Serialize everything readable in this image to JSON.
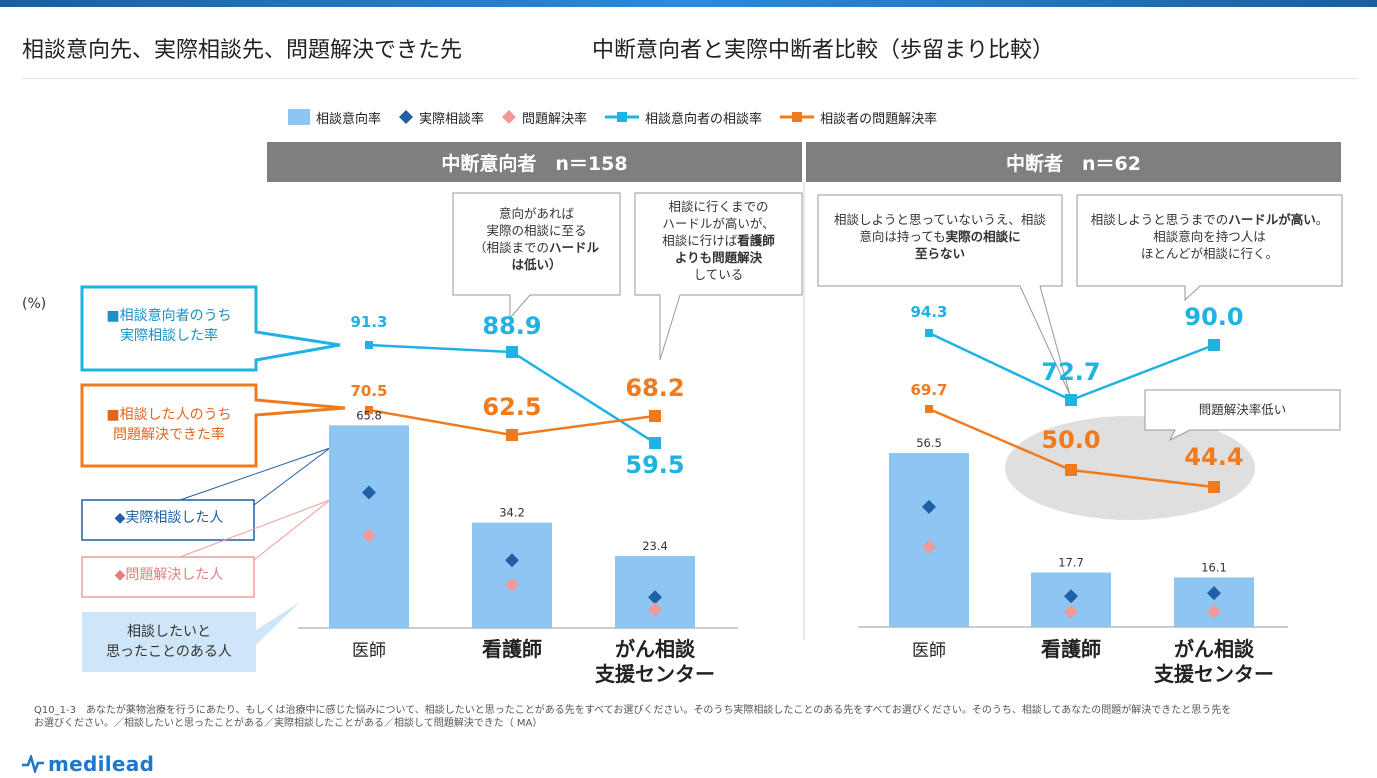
{
  "header": {
    "title_left": "相談意向先、実際相談先、問題解決できた先",
    "title_right": "中断意向者と実際中断者比較（歩留まり比較）"
  },
  "unit_label": "(%)",
  "legend": {
    "bar": "相談意向率",
    "diamond_dark": "実際相談率",
    "diamond_pink": "問題解決率",
    "line_blue": "相談意向者の相談率",
    "line_orange": "相談者の問題解決率"
  },
  "colors": {
    "bar": "#8ec6f2",
    "diamond_dark": "#1f5fa6",
    "diamond_pink": "#f29a9a",
    "line_blue": "#1fb2e3",
    "line_orange": "#f07a1e",
    "panel_header": "#7f7f7f"
  },
  "side_labels": {
    "blue_box": [
      "■相談意向者のうち",
      "実際相談した率"
    ],
    "orange_box": [
      "■相談した人のうち",
      "問題解決できた率"
    ],
    "dark_box": "◆実際相談した人",
    "pink_box": "◆問題解決した人",
    "light_box": [
      "相談したいと",
      "思ったことのある人"
    ]
  },
  "callouts": {
    "hurdle_low": {
      "lines": [
        "意向があれば",
        "実際の相談に至る",
        "（相談までの",
        "は低い）"
      ],
      "bold": "ハードル"
    },
    "hurdle_high": {
      "lines": [
        "相談に行くまでの",
        "ハードルが高いが、",
        "相談に行けば",
        "よりも問題解決",
        "している"
      ],
      "bold": "看護師"
    },
    "no_consult": {
      "lines": [
        "相談しようと思っていないうえ、相談",
        "意向は持っても",
        "至らない"
      ],
      "bold": "実際の相談に"
    },
    "high_hurdle2": {
      "line1_plain": "相談しようと思うまでの",
      "line1_bold": "ハードルが高い",
      "line1_end": "。",
      "line2": "相談意向を持つ人は",
      "line3": "ほとんどが相談に行く。"
    },
    "low_solve": "問題解決率低い"
  },
  "categories": [
    "医師",
    "看護師",
    "がん相談\n支援センター"
  ],
  "chart_data": [
    {
      "type": "bar",
      "panel_title": "中断意向者　n＝158",
      "categories": [
        "医師",
        "看護師",
        "がん相談\n支援センター"
      ],
      "ylabel": "(%)",
      "series": [
        {
          "name": "相談意向率",
          "values": [
            65.8,
            34.2,
            23.4
          ]
        },
        {
          "name": "実際相談率",
          "values": [
            44.0,
            22.0,
            10.0
          ]
        },
        {
          "name": "問題解決率",
          "values": [
            30.0,
            14.0,
            6.0
          ]
        },
        {
          "name": "相談意向者の相談率",
          "values": [
            91.3,
            88.9,
            59.5
          ]
        },
        {
          "name": "相談者の問題解決率",
          "values": [
            70.5,
            62.5,
            68.2
          ]
        }
      ]
    },
    {
      "type": "bar",
      "panel_title": "中断者　n＝62",
      "categories": [
        "医師",
        "看護師",
        "がん相談\n支援センター"
      ],
      "ylabel": "(%)",
      "series": [
        {
          "name": "相談意向率",
          "values": [
            56.5,
            17.7,
            16.1
          ]
        },
        {
          "name": "実際相談率",
          "values": [
            39.0,
            10.0,
            11.0
          ]
        },
        {
          "name": "問題解決率",
          "values": [
            26.0,
            5.0,
            5.0
          ]
        },
        {
          "name": "相談意向者の相談率",
          "values": [
            94.3,
            72.7,
            90.0
          ]
        },
        {
          "name": "相談者の問題解決率",
          "values": [
            69.7,
            50.0,
            44.4
          ]
        }
      ]
    }
  ],
  "footnote": [
    "Q10_1-3　あなたが薬物治療を行うにあたり、もしくは治療中に感じた悩みについて、相談したいと思ったことがある先をすべてお選びください。そのうち実際相談したことのある先をすべてお選びください。そのうち、相談してあなたの問題が解決できたと思う先を",
    "お選びください。／相談したいと思ったことがある／実際相談したことがある／相談して問題解決できた（ MA）"
  ],
  "logo": "medilead"
}
